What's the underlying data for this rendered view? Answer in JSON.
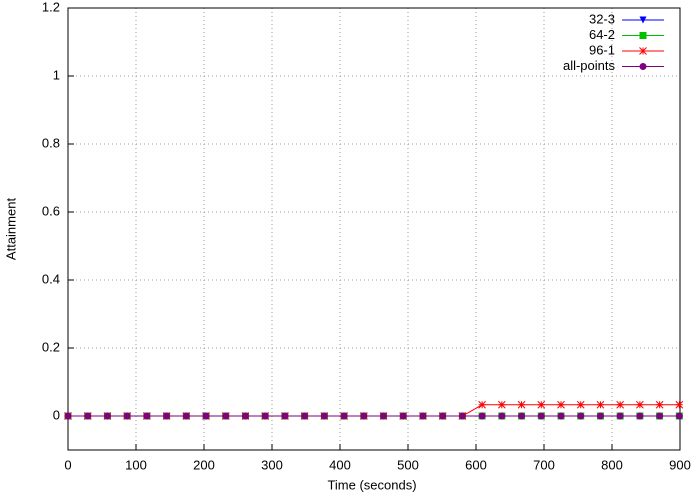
{
  "chart_data": {
    "type": "line",
    "xlabel": "Time (seconds)",
    "ylabel": "Attainment",
    "x": [
      0,
      29,
      58,
      87,
      116,
      145,
      174,
      203,
      232,
      261,
      290,
      319,
      348,
      377,
      406,
      435,
      464,
      493,
      522,
      551,
      580,
      609,
      638,
      667,
      696,
      725,
      754,
      783,
      812,
      841,
      870,
      899
    ],
    "series": [
      {
        "name": "32-3",
        "color": "#0000ff",
        "marker": "triangle-down",
        "values": [
          0,
          0,
          0,
          0,
          0,
          0,
          0,
          0,
          0,
          0,
          0,
          0,
          0,
          0,
          0,
          0,
          0,
          0,
          0,
          0,
          0,
          0,
          0,
          0,
          0,
          0,
          0,
          0,
          0,
          0,
          0,
          0
        ]
      },
      {
        "name": "64-2",
        "color": "#00c000",
        "marker": "square",
        "values": [
          0,
          0,
          0,
          0,
          0,
          0,
          0,
          0,
          0,
          0,
          0,
          0,
          0,
          0,
          0,
          0,
          0,
          0,
          0,
          0,
          0,
          0,
          0,
          0,
          0,
          0,
          0,
          0,
          0,
          0,
          0,
          0
        ]
      },
      {
        "name": "96-1",
        "color": "#ff0000",
        "marker": "star",
        "values": [
          0,
          0,
          0,
          0,
          0,
          0,
          0,
          0,
          0,
          0,
          0,
          0,
          0,
          0,
          0,
          0,
          0,
          0,
          0,
          0,
          0,
          0.033,
          0.033,
          0.033,
          0.033,
          0.033,
          0.033,
          0.033,
          0.033,
          0.033,
          0.033,
          0.033
        ]
      },
      {
        "name": "all-points",
        "color": "#800080",
        "marker": "circle",
        "values": [
          0,
          0,
          0,
          0,
          0,
          0,
          0,
          0,
          0,
          0,
          0,
          0,
          0,
          0,
          0,
          0,
          0,
          0,
          0,
          0,
          0,
          0,
          0,
          0,
          0,
          0,
          0,
          0,
          0,
          0,
          0,
          0
        ]
      }
    ],
    "xlim": [
      0,
      900
    ],
    "xticks": [
      0,
      100,
      200,
      300,
      400,
      500,
      600,
      700,
      800,
      900
    ],
    "ylim": [
      -0.1,
      1.2
    ],
    "yticks": [
      0,
      0.2,
      0.4,
      0.6,
      0.8,
      1,
      1.2
    ],
    "grid": true,
    "legend": "top-right"
  }
}
